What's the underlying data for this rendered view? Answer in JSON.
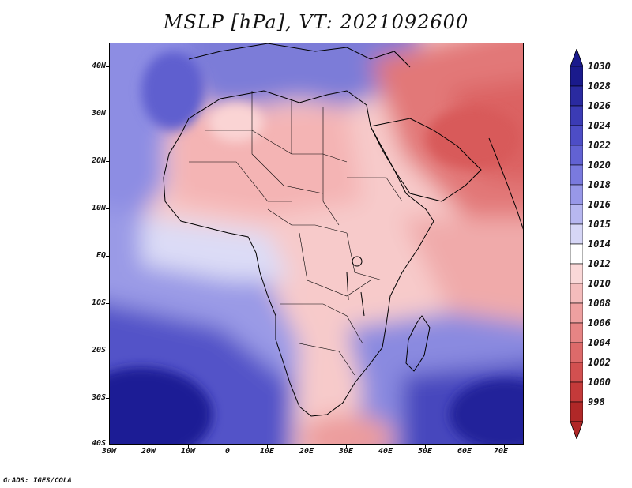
{
  "title": "MSLP [hPa], VT: 2021092600",
  "credit": "GrADS: IGES/COLA",
  "map": {
    "variable": "Mean Sea Level Pressure",
    "units": "hPa",
    "valid_time": "2021092600",
    "region": "Africa",
    "lat_labels": [
      "40N",
      "30N",
      "20N",
      "10N",
      "EQ",
      "10S",
      "20S",
      "30S",
      "40S"
    ],
    "lon_labels": [
      "30W",
      "20W",
      "10W",
      "0",
      "10E",
      "20E",
      "30E",
      "40E",
      "50E",
      "60E",
      "70E"
    ]
  },
  "colorbar": {
    "levels": [
      "1030",
      "1028",
      "1026",
      "1024",
      "1022",
      "1020",
      "1018",
      "1016",
      "1015",
      "1014",
      "1012",
      "1010",
      "1008",
      "1006",
      "1004",
      "1002",
      "1000",
      "998"
    ],
    "colors": [
      "#1a1a8c",
      "#2a2aa0",
      "#3b3bb5",
      "#4d4dc6",
      "#6262d3",
      "#7a7ade",
      "#9898e8",
      "#b7b7f0",
      "#d6d6f6",
      "#ffffff",
      "#fad8d8",
      "#f4bcbc",
      "#eea0a0",
      "#e68484",
      "#dd6a6a",
      "#d25050",
      "#c43a3a",
      "#b02828"
    ]
  }
}
